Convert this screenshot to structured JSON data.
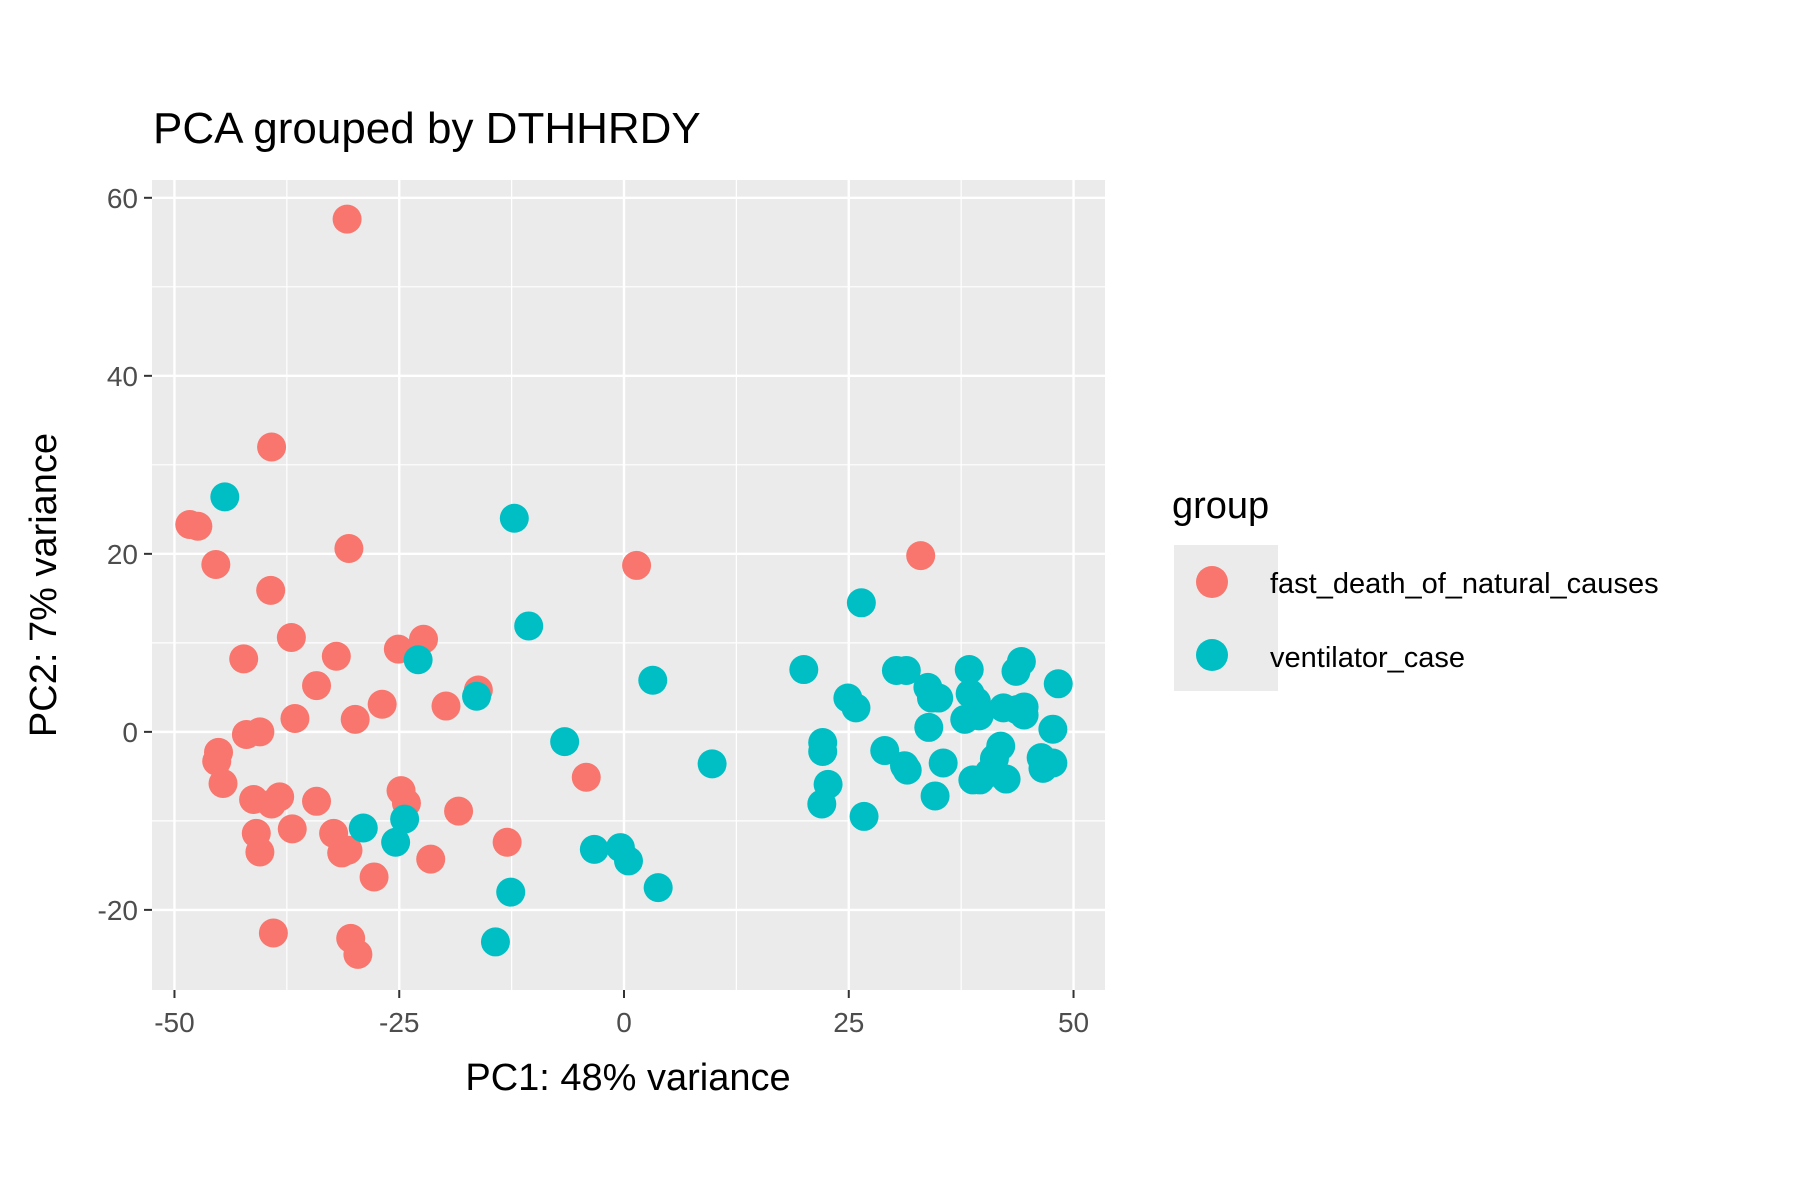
{
  "chart_data": {
    "type": "scatter",
    "title": "PCA grouped by DTHHRDY",
    "xlabel": "PC1: 48% variance",
    "ylabel": "PC2: 7% variance",
    "xlim": [
      -52.5,
      53.5
    ],
    "ylim": [
      -29,
      62
    ],
    "x_ticks": [
      -50,
      -25,
      0,
      25,
      50
    ],
    "x_tick_labels": [
      "-50",
      "-25",
      "0",
      "25",
      "50"
    ],
    "y_ticks": [
      -20,
      0,
      20,
      40,
      60
    ],
    "y_tick_labels": [
      "-20",
      "0",
      "20",
      "40",
      "60"
    ],
    "grid": true,
    "legend_title": "group",
    "legend_position": "right",
    "colors": {
      "panel_background": "#EBEBEB",
      "grid": "#FFFFFF",
      "fast_death_of_natural_causes": "#F8766D",
      "ventilator_case": "#00BFC4"
    },
    "series": [
      {
        "name": "fast_death_of_natural_causes",
        "color": "#F8766D",
        "points": [
          [
            -30.8,
            57.6
          ],
          [
            -39.2,
            32.0
          ],
          [
            -48.3,
            23.3
          ],
          [
            -47.4,
            23.1
          ],
          [
            -45.4,
            18.8
          ],
          [
            -30.6,
            20.6
          ],
          [
            -39.3,
            15.9
          ],
          [
            -37.0,
            10.6
          ],
          [
            -42.3,
            8.2
          ],
          [
            -32.0,
            8.5
          ],
          [
            -25.1,
            9.3
          ],
          [
            -22.3,
            10.4
          ],
          [
            -34.2,
            5.2
          ],
          [
            -26.9,
            3.1
          ],
          [
            -19.8,
            2.9
          ],
          [
            -16.2,
            4.7
          ],
          [
            -36.6,
            1.5
          ],
          [
            -29.9,
            1.4
          ],
          [
            -42.0,
            -0.3
          ],
          [
            -40.5,
            0.0
          ],
          [
            -45.1,
            -2.3
          ],
          [
            -45.3,
            -3.3
          ],
          [
            -44.6,
            -5.8
          ],
          [
            -41.2,
            -7.6
          ],
          [
            -39.2,
            -8.1
          ],
          [
            -38.3,
            -7.3
          ],
          [
            -34.2,
            -7.8
          ],
          [
            -24.8,
            -6.6
          ],
          [
            -24.2,
            -8.0
          ],
          [
            -18.4,
            -8.9
          ],
          [
            -4.2,
            -5.1
          ],
          [
            1.4,
            18.7
          ],
          [
            33.0,
            19.8
          ],
          [
            -40.9,
            -11.4
          ],
          [
            -36.9,
            -10.9
          ],
          [
            -32.3,
            -11.4
          ],
          [
            -31.4,
            -13.6
          ],
          [
            -30.7,
            -13.3
          ],
          [
            -40.5,
            -13.5
          ],
          [
            -21.5,
            -14.3
          ],
          [
            -13.0,
            -12.4
          ],
          [
            -27.8,
            -16.3
          ],
          [
            -39.0,
            -22.6
          ],
          [
            -30.4,
            -23.2
          ],
          [
            -29.6,
            -25.0
          ]
        ]
      },
      {
        "name": "ventilator_case",
        "color": "#00BFC4",
        "points": [
          [
            -44.4,
            26.4
          ],
          [
            -12.2,
            24.0
          ],
          [
            -10.6,
            11.9
          ],
          [
            -22.9,
            8.1
          ],
          [
            -16.4,
            4.0
          ],
          [
            -6.6,
            -1.1
          ],
          [
            3.2,
            5.8
          ],
          [
            9.8,
            -3.6
          ],
          [
            -29.0,
            -10.8
          ],
          [
            -24.4,
            -9.8
          ],
          [
            -25.4,
            -12.4
          ],
          [
            -3.3,
            -13.2
          ],
          [
            -0.4,
            -13.0
          ],
          [
            0.5,
            -14.5
          ],
          [
            3.8,
            -17.5
          ],
          [
            -12.6,
            -18.0
          ],
          [
            -14.3,
            -23.6
          ],
          [
            20.0,
            7.0
          ],
          [
            24.9,
            3.8
          ],
          [
            25.8,
            2.7
          ],
          [
            26.4,
            14.5
          ],
          [
            22.1,
            -1.2
          ],
          [
            22.1,
            -2.2
          ],
          [
            22.7,
            -5.9
          ],
          [
            22.0,
            -8.1
          ],
          [
            26.7,
            -9.5
          ],
          [
            29.0,
            -2.1
          ],
          [
            30.3,
            6.9
          ],
          [
            31.4,
            6.9
          ],
          [
            31.2,
            -3.8
          ],
          [
            31.5,
            -4.3
          ],
          [
            33.8,
            5.0
          ],
          [
            34.2,
            3.8
          ],
          [
            33.9,
            0.5
          ],
          [
            35.0,
            3.8
          ],
          [
            35.5,
            -3.5
          ],
          [
            34.6,
            -7.2
          ],
          [
            38.4,
            7.0
          ],
          [
            38.5,
            4.3
          ],
          [
            39.2,
            3.4
          ],
          [
            37.9,
            1.4
          ],
          [
            39.5,
            1.8
          ],
          [
            38.8,
            -5.4
          ],
          [
            39.6,
            -5.4
          ],
          [
            40.6,
            -4.6
          ],
          [
            41.2,
            -3.0
          ],
          [
            42.2,
            2.7
          ],
          [
            41.9,
            -1.6
          ],
          [
            42.5,
            -5.3
          ],
          [
            44.2,
            7.9
          ],
          [
            43.6,
            6.8
          ],
          [
            43.7,
            2.5
          ],
          [
            44.5,
            2.8
          ],
          [
            44.5,
            1.9
          ],
          [
            46.4,
            -2.9
          ],
          [
            46.6,
            -4.1
          ],
          [
            47.7,
            -3.5
          ],
          [
            47.7,
            0.3
          ],
          [
            48.3,
            5.4
          ]
        ]
      }
    ]
  }
}
